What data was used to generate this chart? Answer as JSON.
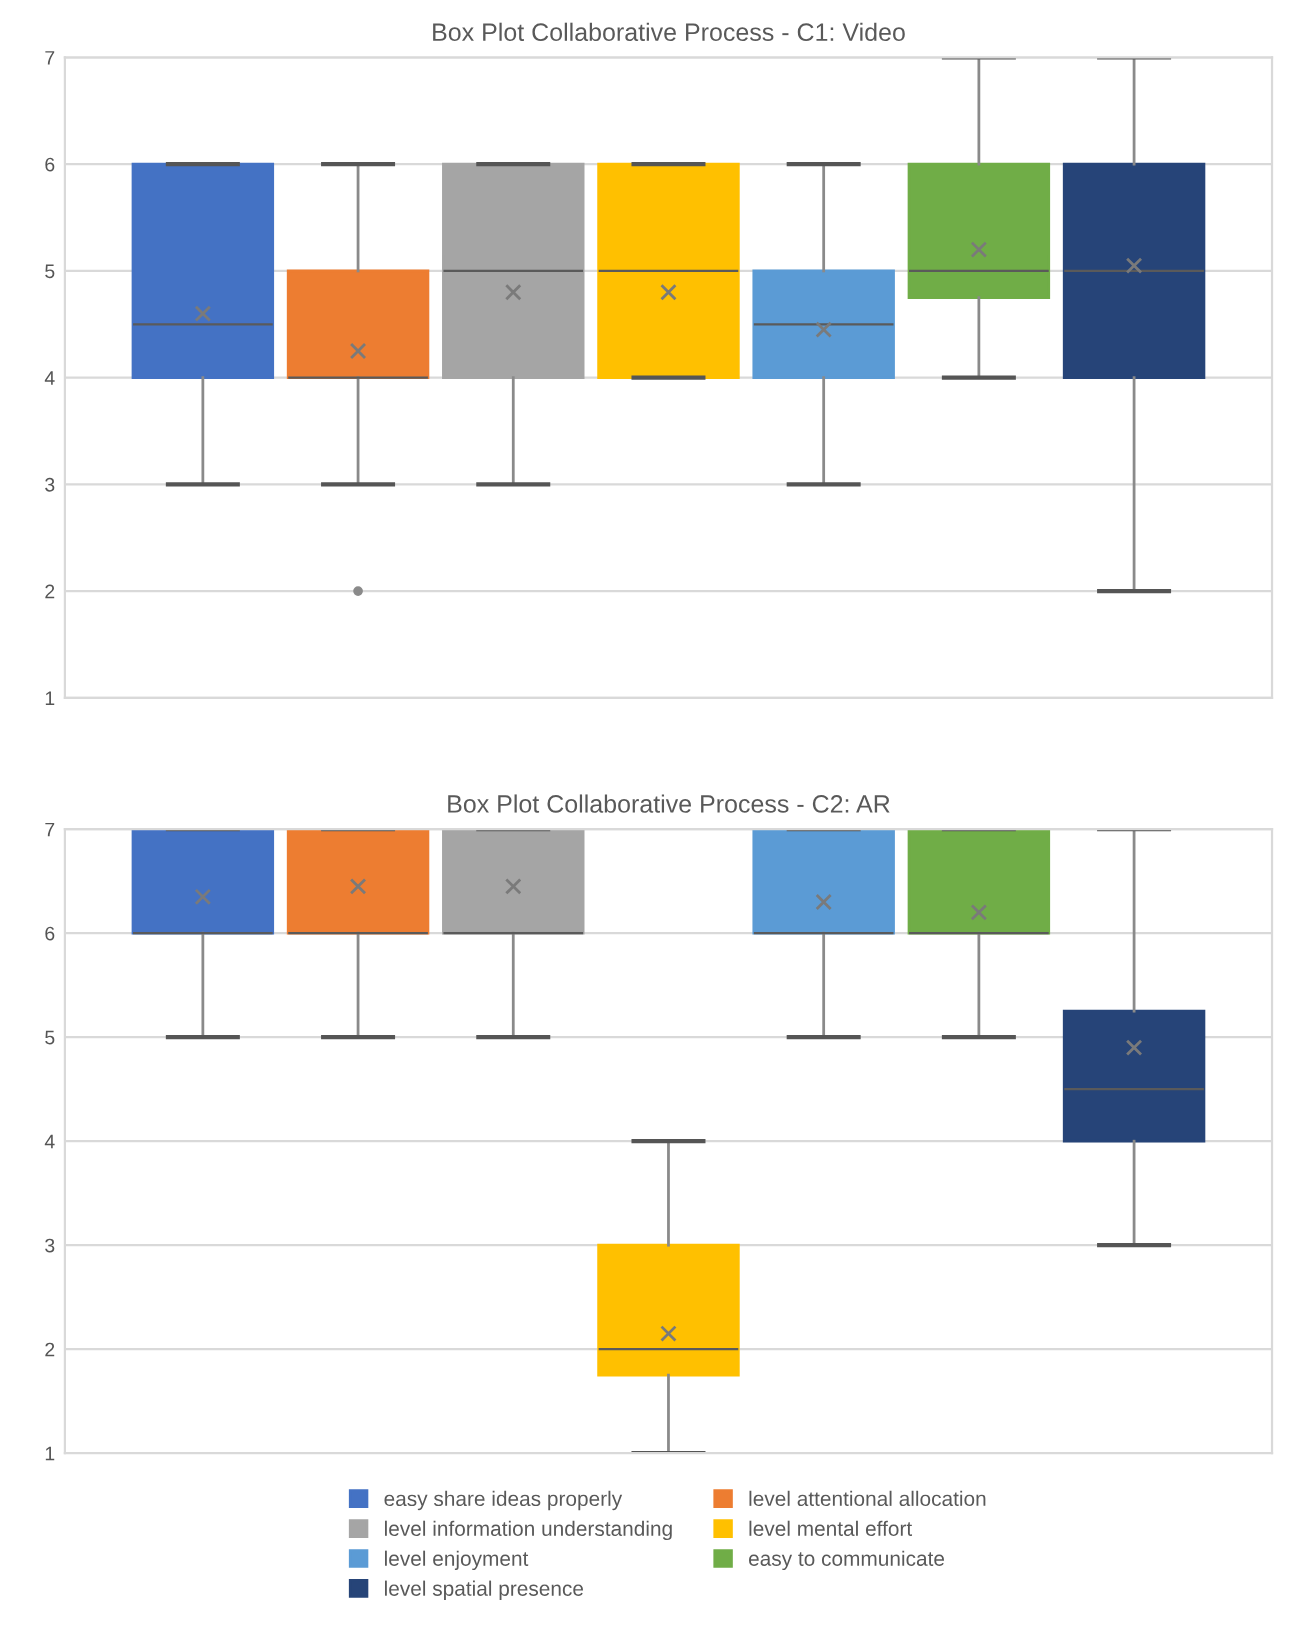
{
  "chart_data": [
    {
      "type": "box",
      "title": "Box Plot Collaborative Process - C1: Video",
      "categories": [
        null
      ],
      "ylim": [
        1,
        7
      ],
      "yticks": [
        1,
        2,
        3,
        4,
        5,
        6,
        7
      ],
      "grid": "y",
      "series": [
        {
          "color": "#4472c4",
          "boxes": [
            {
              "low": 3,
              "q1": 4,
              "median": 4.5,
              "q3": 6,
              "high": 6,
              "mean": 4.6
            }
          ]
        },
        {
          "color": "#ed7d31",
          "boxes": [
            {
              "low": 3,
              "q1": 4,
              "median": 4,
              "q3": 5,
              "high": 6,
              "mean": 4.25,
              "outliers": [
                2
              ]
            }
          ]
        },
        {
          "color": "#a5a5a5",
          "boxes": [
            {
              "low": 3,
              "q1": 4,
              "median": 5,
              "q3": 6,
              "high": 6,
              "mean": 4.8
            }
          ]
        },
        {
          "color": "#ffc000",
          "boxes": [
            {
              "low": 4,
              "q1": 4,
              "median": 5,
              "q3": 6,
              "high": 6,
              "mean": 4.8
            }
          ]
        },
        {
          "color": "#5b9bd5",
          "boxes": [
            {
              "low": 3,
              "q1": 4,
              "median": 4.5,
              "q3": 5,
              "high": 6,
              "mean": 4.45
            }
          ]
        },
        {
          "color": "#70ad47",
          "boxes": [
            {
              "low": 4,
              "q1": 4.75,
              "median": 5,
              "q3": 6,
              "high": 7,
              "mean": 5.2
            }
          ]
        },
        {
          "color": "#264478",
          "boxes": [
            {
              "low": 2,
              "q1": 4,
              "median": 5,
              "q3": 6,
              "high": 7,
              "mean": 5.05
            }
          ]
        }
      ]
    },
    {
      "type": "box",
      "title": "Box Plot Collaborative Process - C2: AR",
      "categories": [
        null
      ],
      "ylim": [
        1,
        7
      ],
      "yticks": [
        1,
        2,
        3,
        4,
        5,
        6,
        7
      ],
      "grid": "y",
      "legend": "bottom",
      "series": [
        {
          "name": "easy share ideas properly",
          "color": "#4472c4",
          "boxes": [
            {
              "low": 5,
              "q1": 6,
              "median": 6,
              "q3": 7,
              "high": 7,
              "mean": 6.35
            }
          ]
        },
        {
          "name": "level attentional allocation",
          "color": "#ed7d31",
          "boxes": [
            {
              "low": 5,
              "q1": 6,
              "median": 6,
              "q3": 7,
              "high": 7,
              "mean": 6.45
            }
          ]
        },
        {
          "name": "level information understanding",
          "color": "#a5a5a5",
          "boxes": [
            {
              "low": 5,
              "q1": 6,
              "median": 6,
              "q3": 7,
              "high": 7,
              "mean": 6.45
            }
          ]
        },
        {
          "name": "level mental effort",
          "color": "#ffc000",
          "boxes": [
            {
              "low": 1,
              "q1": 1.75,
              "median": 2,
              "q3": 3,
              "high": 4,
              "mean": 2.15
            }
          ]
        },
        {
          "name": "level enjoyment",
          "color": "#5b9bd5",
          "boxes": [
            {
              "low": 5,
              "q1": 6,
              "median": 6,
              "q3": 7,
              "high": 7,
              "mean": 6.3
            }
          ]
        },
        {
          "name": "easy to communicate",
          "color": "#70ad47",
          "boxes": [
            {
              "low": 5,
              "q1": 6,
              "median": 6,
              "q3": 7,
              "high": 7,
              "mean": 6.2
            }
          ]
        },
        {
          "name": "level spatial presence",
          "color": "#264478",
          "boxes": [
            {
              "low": 3,
              "q1": 4,
              "median": 4.5,
              "q3": 5.25,
              "high": 7,
              "mean": 4.9
            }
          ]
        }
      ]
    }
  ]
}
